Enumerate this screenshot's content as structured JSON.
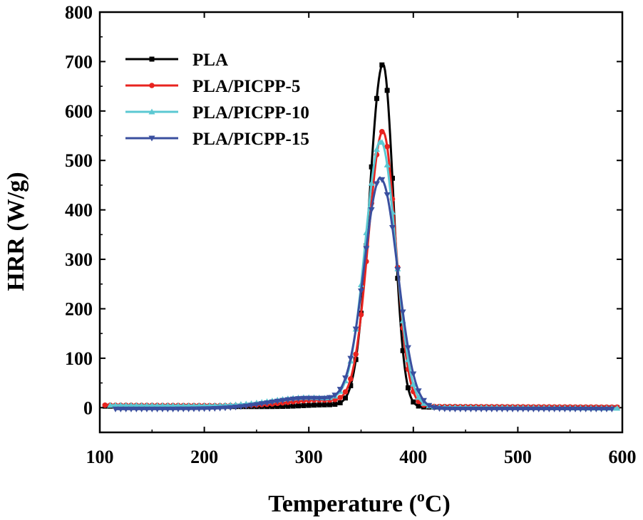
{
  "chart_data": {
    "type": "line",
    "title": "",
    "xlabel": "Temperature",
    "xlabel_unit_prefix": "(",
    "xlabel_unit_sup": "o",
    "xlabel_unit_suffix": "C)",
    "ylabel": "HRR (W/g)",
    "xlim": [
      100,
      600
    ],
    "ylim": [
      -50,
      800
    ],
    "xticks": [
      100,
      200,
      300,
      400,
      500,
      600
    ],
    "yticks": [
      0,
      100,
      200,
      300,
      400,
      500,
      600,
      700,
      800
    ],
    "legend_position": "top-left",
    "grid": false,
    "series": [
      {
        "name": "PLA",
        "color": "#000000",
        "marker": "square",
        "x_start": 105,
        "x_end": 595,
        "baseline_low": 3,
        "baseline_high": 0,
        "peak_x": 371,
        "peak_y": 695,
        "sigma_left": 13,
        "sigma_right": 10,
        "shoulder_amp": 4,
        "shoulder_center": 318,
        "shoulder_width": 22
      },
      {
        "name": "PLA/PICPP-5",
        "color": "#e8231f",
        "marker": "circle",
        "x_start": 105,
        "x_end": 595,
        "baseline_low": 5,
        "baseline_high": 1,
        "peak_x": 371,
        "peak_y": 558,
        "sigma_left": 14,
        "sigma_right": 12,
        "shoulder_amp": 12,
        "shoulder_center": 310,
        "shoulder_width": 30
      },
      {
        "name": "PLA/PICPP-10",
        "color": "#5bc8d2",
        "marker": "triangle-up",
        "x_start": 110,
        "x_end": 597,
        "baseline_low": 5,
        "baseline_high": -1,
        "peak_x": 369,
        "peak_y": 538,
        "sigma_left": 15,
        "sigma_right": 14,
        "shoulder_amp": 18,
        "shoulder_center": 300,
        "shoulder_width": 35
      },
      {
        "name": "PLA/PICPP-15",
        "color": "#3a4f9f",
        "marker": "triangle-down",
        "x_start": 115,
        "x_end": 590,
        "baseline_low": -3,
        "baseline_high": -3,
        "peak_x": 369,
        "peak_y": 462,
        "sigma_left": 16,
        "sigma_right": 16,
        "shoulder_amp": 22,
        "shoulder_center": 300,
        "shoulder_width": 38
      }
    ]
  }
}
